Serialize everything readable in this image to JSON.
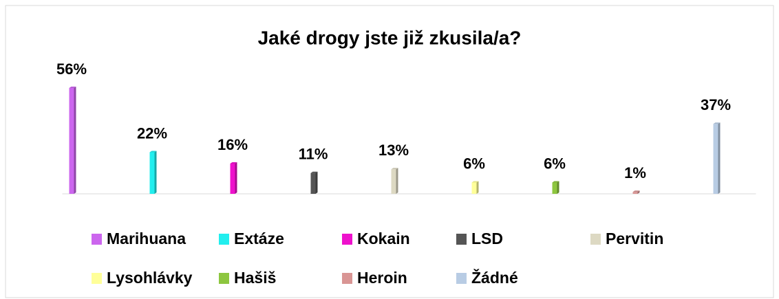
{
  "chart_data": {
    "type": "bar",
    "title": "Jaké drogy jste již zkusila/a?",
    "categories": [
      "Marihuana",
      "Extáze",
      "Kokain",
      "LSD",
      "Pervitin",
      "Lysohlávky",
      "Hašiš",
      "Heroin",
      "Žádné"
    ],
    "values": [
      56,
      22,
      16,
      11,
      13,
      6,
      6,
      1,
      37
    ],
    "value_labels": [
      "56%",
      "22%",
      "16%",
      "11%",
      "13%",
      "6%",
      "6%",
      "1%",
      "37%"
    ],
    "colors": [
      "#cc66ee",
      "#22eeee",
      "#ee11cc",
      "#555555",
      "#ddd9c3",
      "#ffff99",
      "#8dc63f",
      "#d99594",
      "#b8cce4"
    ],
    "ylim": [
      0,
      60
    ]
  }
}
